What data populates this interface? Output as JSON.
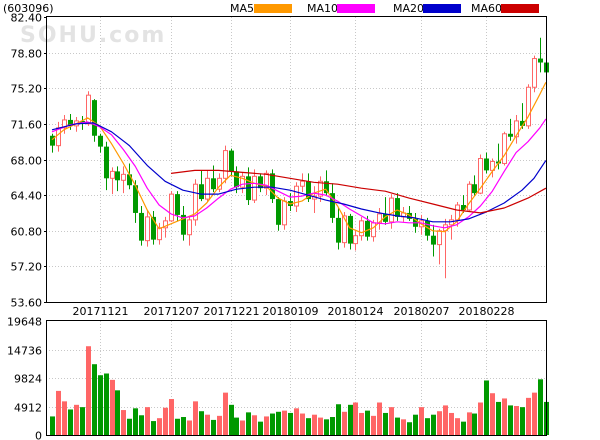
{
  "stock_code": "(603096)",
  "watermark": "SOHU.com",
  "legend": [
    {
      "label": "MA5",
      "color": "#ff9900"
    },
    {
      "label": "MA10",
      "color": "#ff00ff"
    },
    {
      "label": "MA20",
      "color": "#0000cc"
    },
    {
      "label": "MA60",
      "color": "#cc0000"
    }
  ],
  "chart_data": {
    "type": "candlestick",
    "up_color": "#ff6666",
    "down_color": "#009900",
    "price_axis": {
      "ylim": [
        53.6,
        82.4
      ],
      "ticks": [
        "82.40",
        "78.80",
        "75.20",
        "71.60",
        "68.00",
        "64.40",
        "60.80",
        "57.20",
        "53.60"
      ]
    },
    "volume_axis": {
      "ylim": [
        0,
        19648
      ],
      "ticks": [
        "19648",
        "14736",
        "9824",
        "4912",
        "0"
      ]
    },
    "date_labels": [
      {
        "label": "20171121",
        "index": 8
      },
      {
        "label": "20171207",
        "index": 20
      },
      {
        "label": "20171221",
        "index": 30
      },
      {
        "label": "20180109",
        "index": 40
      },
      {
        "label": "20180124",
        "index": 51
      },
      {
        "label": "20180207",
        "index": 62
      },
      {
        "label": "20180228",
        "index": 73
      }
    ],
    "candles": [
      [
        70.4,
        70.6,
        68.7,
        69.4,
        3200
      ],
      [
        69.4,
        71.8,
        68.8,
        71.2,
        7600
      ],
      [
        71.2,
        72.5,
        70.6,
        72.0,
        5800
      ],
      [
        72.0,
        72.6,
        71.0,
        71.4,
        4400
      ],
      [
        71.4,
        72.3,
        70.8,
        71.9,
        5200
      ],
      [
        71.9,
        72.4,
        71.0,
        71.6,
        4800
      ],
      [
        71.6,
        74.9,
        71.4,
        74.5,
        15300
      ],
      [
        74.0,
        74.1,
        69.8,
        70.4,
        12200
      ],
      [
        70.4,
        70.6,
        68.7,
        69.3,
        10300
      ],
      [
        69.3,
        69.8,
        64.9,
        66.1,
        10600
      ],
      [
        66.1,
        67.2,
        64.5,
        66.8,
        9500
      ],
      [
        66.8,
        67.3,
        64.8,
        65.9,
        7700
      ],
      [
        65.9,
        67.3,
        64.6,
        66.5,
        4300
      ],
      [
        66.5,
        67.6,
        65.0,
        65.4,
        2800
      ],
      [
        65.4,
        65.9,
        61.6,
        62.6,
        4600
      ],
      [
        62.6,
        63.3,
        59.3,
        59.8,
        3400
      ],
      [
        59.8,
        62.9,
        59.2,
        62.2,
        4800
      ],
      [
        62.2,
        62.8,
        59.4,
        59.9,
        2400
      ],
      [
        59.9,
        61.6,
        59.4,
        61.1,
        2900
      ],
      [
        61.1,
        62.2,
        60.1,
        61.8,
        4700
      ],
      [
        61.8,
        64.8,
        61.7,
        64.5,
        6200
      ],
      [
        64.5,
        64.8,
        61.8,
        62.4,
        2800
      ],
      [
        62.4,
        63.3,
        59.8,
        60.4,
        3100
      ],
      [
        60.4,
        62.3,
        59.3,
        61.9,
        2500
      ],
      [
        61.9,
        66.0,
        61.3,
        65.5,
        5800
      ],
      [
        65.5,
        66.9,
        63.8,
        64.0,
        4100
      ],
      [
        64.0,
        66.9,
        63.7,
        66.1,
        3500
      ],
      [
        66.1,
        67.4,
        64.7,
        65.0,
        2600
      ],
      [
        65.0,
        66.6,
        64.7,
        66.1,
        3300
      ],
      [
        66.1,
        69.4,
        65.6,
        68.9,
        7300
      ],
      [
        68.9,
        69.1,
        66.3,
        66.8,
        5200
      ],
      [
        66.8,
        67.3,
        64.6,
        65.2,
        3000
      ],
      [
        65.2,
        66.7,
        64.6,
        66.3,
        2500
      ],
      [
        66.3,
        67.2,
        63.4,
        63.9,
        3900
      ],
      [
        63.9,
        67.0,
        63.6,
        66.3,
        3400
      ],
      [
        66.3,
        66.6,
        64.7,
        65.1,
        2300
      ],
      [
        65.1,
        66.9,
        64.4,
        66.6,
        3200
      ],
      [
        66.6,
        67.0,
        63.6,
        64.0,
        3700
      ],
      [
        64.0,
        64.2,
        60.8,
        61.4,
        4000
      ],
      [
        61.4,
        64.2,
        60.9,
        63.8,
        4200
      ],
      [
        63.8,
        64.6,
        62.8,
        63.3,
        3800
      ],
      [
        63.3,
        65.7,
        62.7,
        65.3,
        4600
      ],
      [
        65.3,
        66.6,
        64.7,
        65.8,
        3700
      ],
      [
        65.8,
        66.6,
        63.7,
        64.0,
        2900
      ],
      [
        64.0,
        65.3,
        62.6,
        64.3,
        3500
      ],
      [
        64.3,
        66.3,
        63.7,
        65.8,
        3000
      ],
      [
        65.8,
        66.9,
        64.3,
        64.6,
        2700
      ],
      [
        64.6,
        65.6,
        61.6,
        62.1,
        3100
      ],
      [
        62.1,
        63.1,
        58.9,
        59.6,
        5300
      ],
      [
        59.6,
        62.7,
        59.1,
        62.3,
        4000
      ],
      [
        62.3,
        62.5,
        58.9,
        59.5,
        5200
      ],
      [
        59.5,
        60.9,
        58.8,
        60.3,
        5600
      ],
      [
        60.3,
        62.2,
        59.8,
        61.8,
        3800
      ],
      [
        61.8,
        62.3,
        59.8,
        60.2,
        4200
      ],
      [
        60.2,
        61.9,
        59.7,
        61.6,
        3300
      ],
      [
        61.6,
        63.1,
        60.9,
        62.5,
        5600
      ],
      [
        62.5,
        64.2,
        61.4,
        61.7,
        3800
      ],
      [
        61.7,
        64.5,
        61.0,
        64.1,
        4800
      ],
      [
        64.1,
        64.6,
        61.8,
        62.2,
        3000
      ],
      [
        62.2,
        63.2,
        61.7,
        62.6,
        2700
      ],
      [
        62.6,
        63.3,
        61.8,
        62.0,
        2200
      ],
      [
        62.0,
        62.6,
        60.6,
        61.2,
        3500
      ],
      [
        61.2,
        62.4,
        60.4,
        61.8,
        4800
      ],
      [
        61.8,
        62.1,
        59.8,
        60.3,
        2900
      ],
      [
        60.3,
        61.4,
        58.2,
        59.4,
        3500
      ],
      [
        59.4,
        61.0,
        57.4,
        60.8,
        4100
      ],
      [
        60.8,
        62.0,
        56.0,
        61.4,
        5100
      ],
      [
        61.4,
        62.4,
        59.9,
        61.9,
        3800
      ],
      [
        61.9,
        63.7,
        61.2,
        63.4,
        2900
      ],
      [
        63.4,
        64.4,
        62.6,
        62.9,
        2300
      ],
      [
        62.9,
        65.8,
        62.7,
        65.5,
        3900
      ],
      [
        65.5,
        66.4,
        64.3,
        64.6,
        3700
      ],
      [
        64.6,
        68.5,
        64.5,
        68.1,
        5600
      ],
      [
        68.1,
        68.7,
        66.6,
        66.9,
        9400
      ],
      [
        66.9,
        68.1,
        66.2,
        67.8,
        7200
      ],
      [
        67.8,
        69.6,
        67.0,
        67.6,
        5700
      ],
      [
        67.6,
        70.8,
        67.4,
        70.6,
        6300
      ],
      [
        70.6,
        72.1,
        69.9,
        70.3,
        5100
      ],
      [
        70.3,
        72.5,
        69.6,
        71.9,
        5000
      ],
      [
        71.9,
        73.7,
        71.1,
        71.4,
        4800
      ],
      [
        71.4,
        75.6,
        71.1,
        75.3,
        6400
      ],
      [
        75.3,
        78.5,
        74.8,
        78.2,
        7300
      ],
      [
        78.2,
        80.3,
        76.8,
        77.8,
        9600
      ],
      [
        77.8,
        78.4,
        76.4,
        76.8,
        5700
      ]
    ],
    "ma_series": [
      {
        "name": "MA5",
        "color": "#ff9900",
        "points": [
          [
            0,
            70.0
          ],
          [
            2,
            71.0
          ],
          [
            4,
            71.6
          ],
          [
            6,
            72.2
          ],
          [
            8,
            71.4
          ],
          [
            10,
            69.6
          ],
          [
            12,
            67.6
          ],
          [
            14,
            65.4
          ],
          [
            16,
            62.9
          ],
          [
            18,
            61.0
          ],
          [
            20,
            61.5
          ],
          [
            22,
            62.0
          ],
          [
            24,
            62.5
          ],
          [
            26,
            63.6
          ],
          [
            28,
            65.2
          ],
          [
            30,
            66.4
          ],
          [
            32,
            66.1
          ],
          [
            34,
            65.6
          ],
          [
            36,
            65.3
          ],
          [
            38,
            64.1
          ],
          [
            40,
            63.5
          ],
          [
            42,
            63.8
          ],
          [
            44,
            64.6
          ],
          [
            46,
            65.0
          ],
          [
            48,
            63.3
          ],
          [
            50,
            61.1
          ],
          [
            52,
            60.6
          ],
          [
            54,
            61.1
          ],
          [
            56,
            62.2
          ],
          [
            58,
            62.9
          ],
          [
            60,
            62.4
          ],
          [
            62,
            61.5
          ],
          [
            64,
            60.8
          ],
          [
            66,
            60.7
          ],
          [
            68,
            61.7
          ],
          [
            70,
            63.5
          ],
          [
            72,
            65.1
          ],
          [
            74,
            66.8
          ],
          [
            76,
            68.4
          ],
          [
            78,
            70.4
          ],
          [
            80,
            72.3
          ],
          [
            82,
            74.6
          ],
          [
            83,
            75.8
          ]
        ]
      },
      {
        "name": "MA10",
        "color": "#ff00ff",
        "points": [
          [
            0,
            70.8
          ],
          [
            3,
            71.5
          ],
          [
            6,
            71.8
          ],
          [
            8,
            71.3
          ],
          [
            10,
            70.5
          ],
          [
            12,
            69.0
          ],
          [
            14,
            67.3
          ],
          [
            16,
            65.1
          ],
          [
            18,
            63.4
          ],
          [
            20,
            62.5
          ],
          [
            22,
            62.1
          ],
          [
            24,
            62.3
          ],
          [
            26,
            63.1
          ],
          [
            28,
            64.1
          ],
          [
            30,
            65.0
          ],
          [
            32,
            65.5
          ],
          [
            34,
            65.6
          ],
          [
            36,
            65.4
          ],
          [
            38,
            64.8
          ],
          [
            40,
            64.2
          ],
          [
            42,
            64.3
          ],
          [
            44,
            64.6
          ],
          [
            46,
            64.4
          ],
          [
            48,
            63.8
          ],
          [
            50,
            63.0
          ],
          [
            52,
            62.3
          ],
          [
            54,
            61.6
          ],
          [
            56,
            61.5
          ],
          [
            58,
            61.7
          ],
          [
            60,
            61.6
          ],
          [
            62,
            61.6
          ],
          [
            64,
            61.3
          ],
          [
            66,
            61.1
          ],
          [
            68,
            61.4
          ],
          [
            70,
            62.2
          ],
          [
            72,
            63.3
          ],
          [
            74,
            64.8
          ],
          [
            76,
            66.8
          ],
          [
            78,
            68.7
          ],
          [
            80,
            69.8
          ],
          [
            82,
            71.2
          ],
          [
            83,
            72.1
          ]
        ]
      },
      {
        "name": "MA20",
        "color": "#0000cc",
        "points": [
          [
            0,
            71.0
          ],
          [
            4,
            71.6
          ],
          [
            7,
            71.7
          ],
          [
            10,
            70.8
          ],
          [
            13,
            69.4
          ],
          [
            16,
            67.4
          ],
          [
            19,
            65.8
          ],
          [
            22,
            64.9
          ],
          [
            25,
            64.5
          ],
          [
            28,
            64.5
          ],
          [
            31,
            65.0
          ],
          [
            34,
            65.2
          ],
          [
            37,
            65.2
          ],
          [
            40,
            64.9
          ],
          [
            43,
            64.4
          ],
          [
            46,
            63.9
          ],
          [
            49,
            63.5
          ],
          [
            52,
            63.0
          ],
          [
            55,
            62.6
          ],
          [
            58,
            62.3
          ],
          [
            61,
            62.1
          ],
          [
            64,
            61.7
          ],
          [
            67,
            61.7
          ],
          [
            70,
            62.0
          ],
          [
            73,
            62.7
          ],
          [
            76,
            63.6
          ],
          [
            79,
            64.9
          ],
          [
            81,
            66.1
          ],
          [
            83,
            67.9
          ]
        ]
      },
      {
        "name": "MA60",
        "color": "#cc0000",
        "points": [
          [
            20,
            66.6
          ],
          [
            24,
            66.9
          ],
          [
            28,
            66.9
          ],
          [
            32,
            66.7
          ],
          [
            36,
            66.5
          ],
          [
            40,
            66.1
          ],
          [
            44,
            65.7
          ],
          [
            48,
            65.5
          ],
          [
            52,
            65.1
          ],
          [
            56,
            64.8
          ],
          [
            60,
            64.1
          ],
          [
            64,
            63.5
          ],
          [
            68,
            62.9
          ],
          [
            72,
            62.6
          ],
          [
            76,
            63.1
          ],
          [
            80,
            64.1
          ],
          [
            83,
            65.1
          ]
        ]
      }
    ]
  }
}
